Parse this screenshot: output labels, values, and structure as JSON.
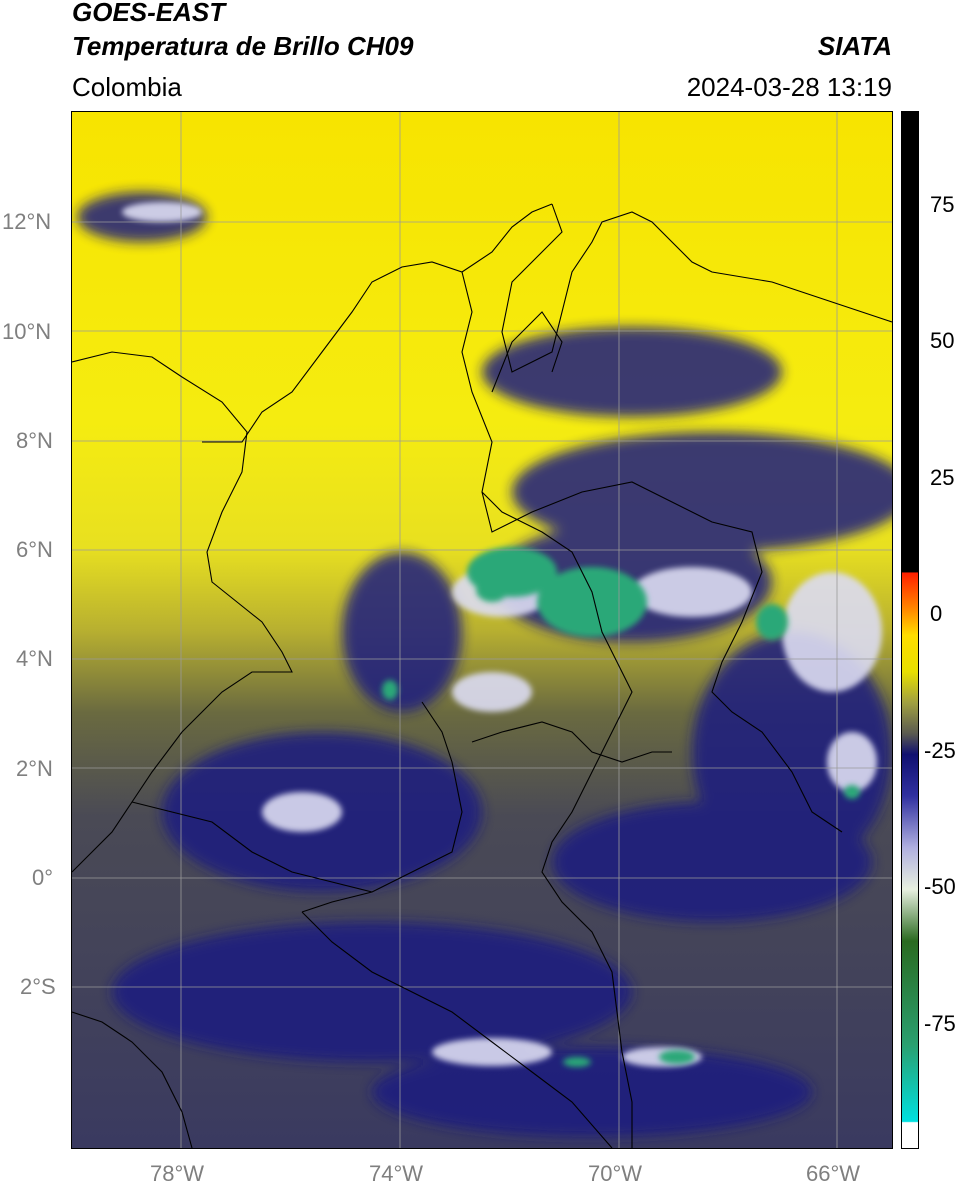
{
  "header": {
    "satellite": "GOES-EAST",
    "product": "Temperatura de Brillo CH09",
    "agency": "SIATA",
    "region": "Colombia",
    "datetime": "2024-03-28 13:19"
  },
  "map": {
    "extent": {
      "lon_min": -80,
      "lon_max": -65,
      "lat_min": -5,
      "lat_max": 14
    },
    "lat_ticks": [
      {
        "value": 12,
        "label": "12°N"
      },
      {
        "value": 10,
        "label": "10°N"
      },
      {
        "value": 8,
        "label": "8°N"
      },
      {
        "value": 6,
        "label": "6°N"
      },
      {
        "value": 4,
        "label": "4°N"
      },
      {
        "value": 2,
        "label": "2°N"
      },
      {
        "value": 0,
        "label": "0°"
      },
      {
        "value": -2,
        "label": "2°S"
      }
    ],
    "lon_ticks": [
      {
        "value": -78,
        "label": "78°W"
      },
      {
        "value": -74,
        "label": "74°W"
      },
      {
        "value": -70,
        "label": "70°W"
      },
      {
        "value": -66,
        "label": "66°W"
      }
    ],
    "grid": true,
    "colors": {
      "warm": "#f5ec00",
      "warm_orange": "#f0c000",
      "mid_olive": "#8a8a3a",
      "cool_gray": "#4a4a5a",
      "cold_blue": "#1a1a7a",
      "very_cold_white": "#e8e8f5",
      "coldest_green": "#2aa070",
      "coastline": "#000000",
      "gridline": "#9a9a9a"
    }
  },
  "colorbar": {
    "range": [
      -100,
      90
    ],
    "ticks": [
      {
        "value": 75,
        "label": "75"
      },
      {
        "value": 50,
        "label": "50"
      },
      {
        "value": 25,
        "label": "25"
      },
      {
        "value": 0,
        "label": "0"
      },
      {
        "value": -25,
        "label": "-25"
      },
      {
        "value": -50,
        "label": "-50"
      },
      {
        "value": -75,
        "label": "-75"
      }
    ],
    "stops": [
      {
        "value": -100,
        "color": "#ffffff"
      },
      {
        "value": -95,
        "color": "#00e0e0"
      },
      {
        "value": -80,
        "color": "#2aa070"
      },
      {
        "value": -62,
        "color": "#2a6a20"
      },
      {
        "value": -52,
        "color": "#e8f0e0"
      },
      {
        "value": -45,
        "color": "#b0b0e0"
      },
      {
        "value": -35,
        "color": "#3030a0"
      },
      {
        "value": -27,
        "color": "#101070"
      },
      {
        "value": -24,
        "color": "#5a5a50"
      },
      {
        "value": -18,
        "color": "#a0a040"
      },
      {
        "value": -12,
        "color": "#e8e000"
      },
      {
        "value": -6,
        "color": "#ffdd00"
      },
      {
        "value": 0,
        "color": "#ff8800"
      },
      {
        "value": 8,
        "color": "#ff2000"
      },
      {
        "value": 10,
        "color": "#000000"
      },
      {
        "value": 90,
        "color": "#000000"
      }
    ]
  }
}
